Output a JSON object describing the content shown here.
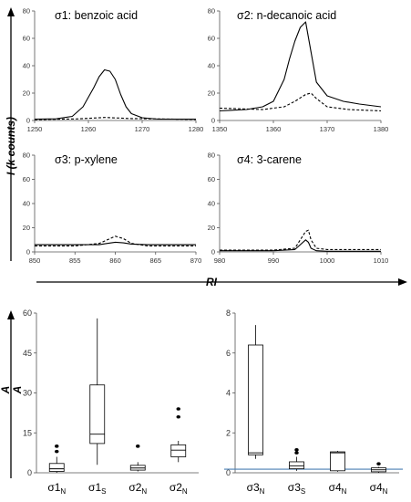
{
  "chart_data": [
    {
      "type": "line",
      "title": "σ1: benzoic acid",
      "xlim": [
        1250,
        1280
      ],
      "ylim": [
        0,
        80
      ],
      "xticks": [
        1250,
        1260,
        1270,
        1280
      ],
      "yticks": [
        0,
        20,
        40,
        60,
        80
      ],
      "series": [
        {
          "style": "solid",
          "x": [
            1250,
            1254,
            1257,
            1259,
            1261,
            1262,
            1263,
            1264,
            1265,
            1266,
            1267,
            1268,
            1270,
            1273,
            1276,
            1280
          ],
          "y": [
            1.0,
            1.2,
            3.0,
            10.0,
            24.0,
            32.0,
            37.0,
            36.0,
            30.0,
            19.0,
            10.0,
            5.0,
            2.0,
            1.0,
            1.0,
            1.0
          ]
        },
        {
          "style": "dashed",
          "x": [
            1250,
            1258,
            1263,
            1268,
            1280
          ],
          "y": [
            0.6,
            1.2,
            2.2,
            1.4,
            0.8
          ]
        }
      ]
    },
    {
      "type": "line",
      "title": "σ2: n-decanoic acid",
      "xlim": [
        1350,
        1380
      ],
      "ylim": [
        0,
        80
      ],
      "xticks": [
        1350,
        1360,
        1370,
        1380
      ],
      "yticks": [
        0,
        20,
        40,
        60,
        80
      ],
      "series": [
        {
          "style": "solid",
          "x": [
            1350,
            1355,
            1358,
            1360,
            1362,
            1363,
            1364,
            1365,
            1366,
            1367,
            1368,
            1370,
            1373,
            1376,
            1380
          ],
          "y": [
            7.0,
            8.0,
            10.0,
            14.0,
            30.0,
            45.0,
            58.0,
            68.0,
            72.0,
            50.0,
            28.0,
            18.0,
            14.0,
            12.0,
            10.0
          ]
        },
        {
          "style": "dashed",
          "x": [
            1350,
            1358,
            1362,
            1364,
            1366,
            1367,
            1368,
            1370,
            1374,
            1380
          ],
          "y": [
            9.0,
            8.0,
            10.0,
            14.0,
            19.0,
            20.0,
            16.0,
            10.0,
            8.0,
            7.0
          ]
        }
      ]
    },
    {
      "type": "line",
      "title": "σ3: p-xylene",
      "xlim": [
        850,
        870
      ],
      "ylim": [
        0,
        80
      ],
      "xticks": [
        850,
        855,
        860,
        865,
        870
      ],
      "yticks": [
        0,
        20,
        40,
        60,
        80
      ],
      "series": [
        {
          "style": "solid",
          "x": [
            850,
            855,
            858,
            859,
            860,
            861,
            862,
            864,
            870
          ],
          "y": [
            6.0,
            6.0,
            6.0,
            7.0,
            8.0,
            7.5,
            6.5,
            6.0,
            6.0
          ]
        },
        {
          "style": "dashed",
          "x": [
            850,
            855,
            858,
            859,
            860,
            861,
            862,
            864,
            870
          ],
          "y": [
            5.0,
            5.0,
            7.0,
            10.0,
            13.0,
            11.0,
            7.0,
            5.0,
            5.0
          ]
        }
      ]
    },
    {
      "type": "line",
      "title": "σ4: 3-carene",
      "xlim": [
        980,
        1010
      ],
      "ylim": [
        0,
        80
      ],
      "xticks": [
        980,
        990,
        1000,
        1010
      ],
      "yticks": [
        0,
        20,
        40,
        60,
        80
      ],
      "series": [
        {
          "style": "solid",
          "x": [
            980,
            990,
            994,
            995,
            996,
            996.5,
            997,
            998,
            1000,
            1010
          ],
          "y": [
            1.0,
            1.0,
            2.0,
            6.0,
            10.0,
            8.0,
            3.0,
            1.0,
            0.5,
            0.5
          ]
        },
        {
          "style": "dashed",
          "x": [
            980,
            990,
            994,
            995,
            996,
            996.5,
            997,
            998,
            1000,
            1010
          ],
          "y": [
            1.5,
            1.5,
            3.0,
            10.0,
            17.0,
            18.0,
            10.0,
            3.0,
            2.0,
            2.0
          ]
        }
      ]
    },
    {
      "type": "box",
      "ylim": [
        0,
        60
      ],
      "yticks": [
        0,
        15,
        30,
        45,
        60
      ],
      "boxes": [
        {
          "label": "σ1",
          "sub": "N",
          "whisker_low": 0,
          "q1": 0.5,
          "median": 1.5,
          "q3": 3.5,
          "whisker_high": 6,
          "outliers": [
            8,
            10
          ]
        },
        {
          "label": "σ1",
          "sub": "S",
          "whisker_low": 3,
          "q1": 11,
          "median": 14.5,
          "q3": 33,
          "whisker_high": 58,
          "outliers": []
        },
        {
          "label": "σ2",
          "sub": "N",
          "whisker_low": 0.5,
          "q1": 1,
          "median": 1.8,
          "q3": 2.8,
          "whisker_high": 4,
          "outliers": [
            10
          ]
        },
        {
          "label": "σ2",
          "sub": "N",
          "whisker_low": 4,
          "q1": 6,
          "median": 8.5,
          "q3": 10.5,
          "whisker_high": 12,
          "outliers": [
            21,
            24
          ]
        }
      ]
    },
    {
      "type": "box",
      "ylim": [
        0,
        8
      ],
      "yticks": [
        0,
        2,
        4,
        6,
        8
      ],
      "boxes": [
        {
          "label": "σ3",
          "sub": "N",
          "whisker_low": 0.7,
          "q1": 0.9,
          "median": 1.0,
          "q3": 6.4,
          "whisker_high": 7.4,
          "outliers": []
        },
        {
          "label": "σ3",
          "sub": "S",
          "whisker_low": 0.1,
          "q1": 0.2,
          "median": 0.35,
          "q3": 0.55,
          "whisker_high": 0.8,
          "outliers": [
            1.0,
            1.15
          ]
        },
        {
          "label": "σ4",
          "sub": "N",
          "whisker_low": 0.05,
          "q1": 0.1,
          "median": 1.0,
          "q3": 1.05,
          "whisker_high": 1.1,
          "outliers": []
        },
        {
          "label": "σ4",
          "sub": "N",
          "whisker_low": 0,
          "q1": 0.05,
          "median": 0.15,
          "q3": 0.25,
          "whisker_high": 0.3,
          "outliers": [
            0.45
          ]
        }
      ],
      "reference_line": {
        "y": 0.18,
        "color": "#4a7fb5"
      }
    }
  ],
  "labels": {
    "top_ylabel": "I (k counts)",
    "top_xlabel": "RI",
    "bottom_ylabel_num": "A",
    "bottom_ylabel_den": "A"
  },
  "colors": {
    "axis": "#555555",
    "line": "#000000",
    "reference": "#4a7fb5"
  }
}
